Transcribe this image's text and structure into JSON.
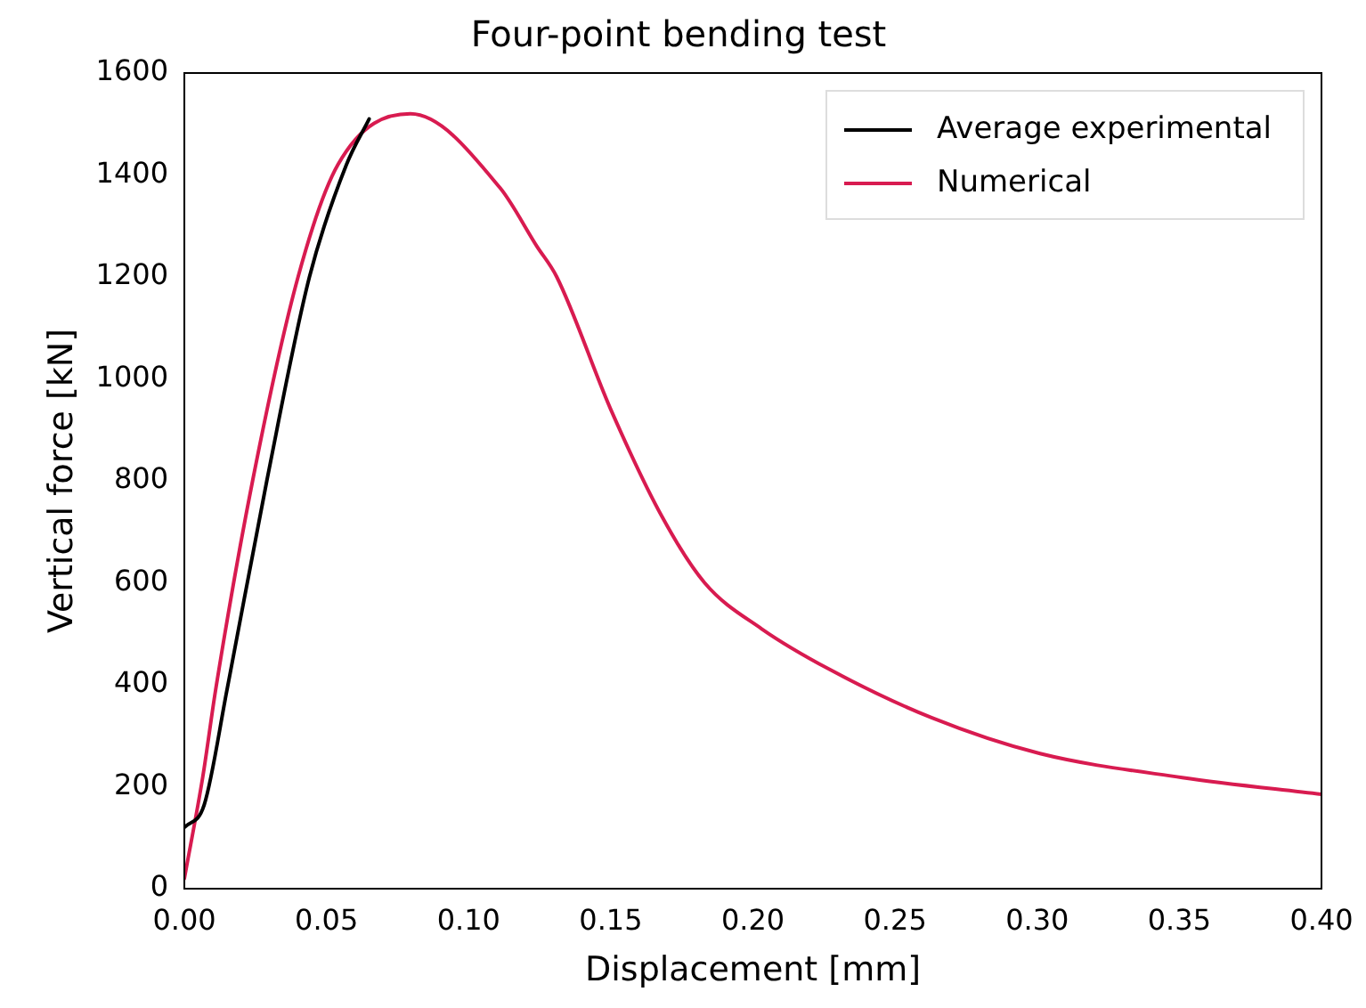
{
  "chart_data": {
    "type": "line",
    "title": "Four-point bending test",
    "xlabel": "Displacement [mm]",
    "ylabel": "Vertical force [kN]",
    "xlim": [
      0,
      0.4
    ],
    "xticks": [
      {
        "value": 0,
        "label": "0.00"
      },
      {
        "value": 0.05,
        "label": "0.05"
      },
      {
        "value": 0.1,
        "label": "0.10"
      },
      {
        "value": 0.15,
        "label": "0.15"
      },
      {
        "value": 0.2,
        "label": "0.20"
      },
      {
        "value": 0.25,
        "label": "0.25"
      },
      {
        "value": 0.3,
        "label": "0.30"
      },
      {
        "value": 0.35,
        "label": "0.35"
      },
      {
        "value": 0.4,
        "label": "0.40"
      }
    ],
    "ylim": [
      0,
      1600
    ],
    "yticks": [
      0,
      200,
      400,
      600,
      800,
      1000,
      1200,
      1400,
      1600
    ],
    "grid": false,
    "legend": "top right",
    "marker": "none",
    "line_style": "solid",
    "series": [
      {
        "name": "Average experimental",
        "color": "#000000",
        "x": [
          0,
          0.007,
          0.015,
          0.029,
          0.044,
          0.057,
          0.065
        ],
        "values": [
          120,
          165,
          390,
          800,
          1200,
          1420,
          1510
        ]
      },
      {
        "name": "Numerical",
        "color": "#d81b50",
        "x": [
          0,
          0.0065,
          0.011,
          0.024,
          0.04,
          0.054,
          0.0795,
          0.111,
          0.124,
          0.131,
          0.15,
          0.168,
          0.183,
          0.203,
          0.227,
          0.263,
          0.301,
          0.351,
          0.4
        ],
        "values": [
          20,
          220,
          390,
          800,
          1200,
          1420,
          1520,
          1375,
          1260,
          1200,
          940,
          730,
          600,
          510,
          430,
          335,
          265,
          218,
          185
        ]
      }
    ]
  }
}
